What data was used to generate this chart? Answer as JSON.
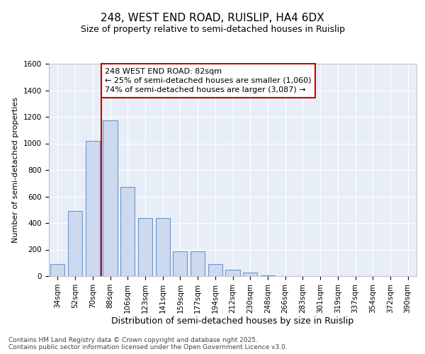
{
  "title1": "248, WEST END ROAD, RUISLIP, HA4 6DX",
  "title2": "Size of property relative to semi-detached houses in Ruislip",
  "xlabel": "Distribution of semi-detached houses by size in Ruislip",
  "ylabel": "Number of semi-detached properties",
  "categories": [
    "34sqm",
    "52sqm",
    "70sqm",
    "88sqm",
    "106sqm",
    "123sqm",
    "141sqm",
    "159sqm",
    "177sqm",
    "194sqm",
    "212sqm",
    "230sqm",
    "248sqm",
    "266sqm",
    "283sqm",
    "301sqm",
    "319sqm",
    "337sqm",
    "354sqm",
    "372sqm",
    "390sqm"
  ],
  "values": [
    90,
    490,
    1020,
    1175,
    670,
    435,
    435,
    185,
    185,
    90,
    50,
    25,
    5,
    0,
    0,
    0,
    0,
    0,
    0,
    0,
    0
  ],
  "bar_color": "#ccd9ee",
  "bar_edge_color": "#6b96cc",
  "annotation_text": "248 WEST END ROAD: 82sqm\n← 25% of semi-detached houses are smaller (1,060)\n74% of semi-detached houses are larger (3,087) →",
  "ylim": [
    0,
    1600
  ],
  "yticks": [
    0,
    200,
    400,
    600,
    800,
    1000,
    1200,
    1400,
    1600
  ],
  "plot_bg_color": "#e8eef8",
  "fig_bg_color": "#ffffff",
  "footer_text": "Contains HM Land Registry data © Crown copyright and database right 2025.\nContains public sector information licensed under the Open Government Licence v3.0.",
  "annotation_box_color": "#ffffff",
  "annotation_box_edge": "#cc0000",
  "red_line_color": "#cc0000",
  "grid_color": "#ffffff",
  "title1_fontsize": 11,
  "title2_fontsize": 9,
  "ylabel_fontsize": 8,
  "xlabel_fontsize": 9,
  "tick_fontsize": 7.5,
  "footer_fontsize": 6.5,
  "ann_fontsize": 8
}
